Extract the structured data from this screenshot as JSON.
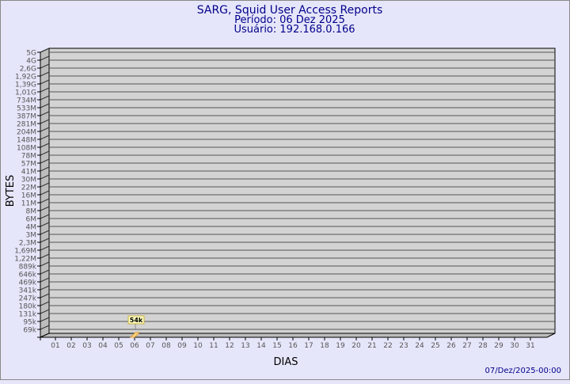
{
  "chart_data": {
    "type": "bar",
    "title": "SARG, Squid User Access Reports",
    "subtitle_period": "Período: 06 Dez 2025",
    "subtitle_user": "Usuário: 192.168.0.166",
    "xlabel": "DIAS",
    "ylabel": "BYTES",
    "footer": "07/Dez/2025-00:00",
    "y_scale": "log",
    "grid": true,
    "y_ticks": [
      "5G",
      "4G",
      "2,6G",
      "1,92G",
      "1,39G",
      "1,01G",
      "734M",
      "533M",
      "387M",
      "281M",
      "204M",
      "148M",
      "108M",
      "78M",
      "57M",
      "41M",
      "30M",
      "22M",
      "16M",
      "11M",
      "8M",
      "6M",
      "4M",
      "3M",
      "2,3M",
      "1,69M",
      "1,22M",
      "889k",
      "646k",
      "469k",
      "341k",
      "247k",
      "180k",
      "131k",
      "95k",
      "69k"
    ],
    "categories": [
      "01",
      "02",
      "03",
      "04",
      "05",
      "06",
      "07",
      "08",
      "09",
      "10",
      "11",
      "12",
      "13",
      "14",
      "15",
      "16",
      "17",
      "18",
      "19",
      "20",
      "21",
      "22",
      "23",
      "24",
      "25",
      "26",
      "27",
      "28",
      "29",
      "30",
      "31"
    ],
    "bars": [
      {
        "category": "06",
        "value": 54000,
        "label": "54k"
      }
    ],
    "colors": {
      "background": "#e6e6fa",
      "plot": "#d3d3d3",
      "bar": "#ffd480",
      "title": "#00008b"
    }
  }
}
